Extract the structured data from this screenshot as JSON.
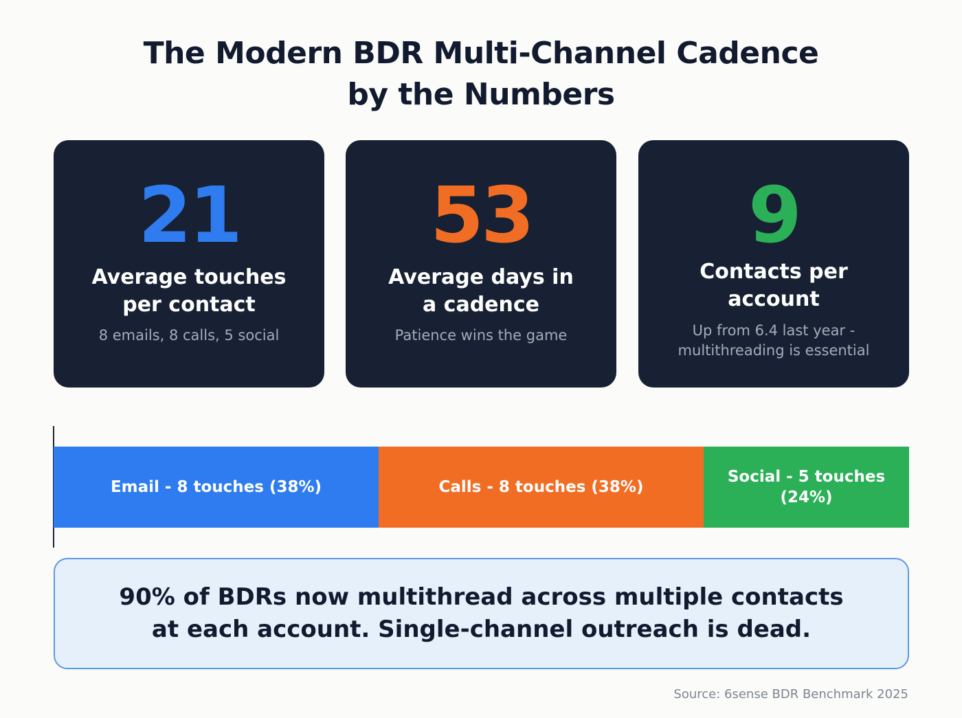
{
  "title": {
    "line1": "The Modern BDR Multi-Channel Cadence",
    "line2": "by the Numbers"
  },
  "stats": [
    {
      "value": "21",
      "color": "#2f7cf0",
      "label_line1": "Average touches",
      "label_line2": "per contact",
      "sub_line1": "8 emails, 8 calls, 5 social",
      "sub_line2": ""
    },
    {
      "value": "53",
      "color": "#f26d24",
      "label_line1": "Average days in",
      "label_line2": "a cadence",
      "sub_line1": "Patience wins the game",
      "sub_line2": ""
    },
    {
      "value": "9",
      "color": "#2bb058",
      "label_line1": "Contacts per",
      "label_line2": "account",
      "sub_line1": "Up from 6.4 last year -",
      "sub_line2": "multithreading is essential"
    }
  ],
  "chart_data": {
    "type": "bar",
    "orientation": "horizontal-stacked",
    "title": "",
    "xlabel": "",
    "ylabel": "",
    "series": [
      {
        "name": "Email",
        "touches": 8,
        "percent": 38,
        "color": "#2f7cf0",
        "label": "Email - 8 touches (38%)"
      },
      {
        "name": "Calls",
        "touches": 8,
        "percent": 38,
        "color": "#f26d24",
        "label": "Calls - 8 touches (38%)"
      },
      {
        "name": "Social",
        "touches": 5,
        "percent": 24,
        "color": "#2bb058",
        "label": "Social - 5 touches (24%)"
      }
    ]
  },
  "callout": {
    "line1": "90% of BDRs now multithread across multiple contacts",
    "line2": "at each account. Single-channel outreach is dead."
  },
  "source": "Source: 6sense BDR Benchmark 2025"
}
